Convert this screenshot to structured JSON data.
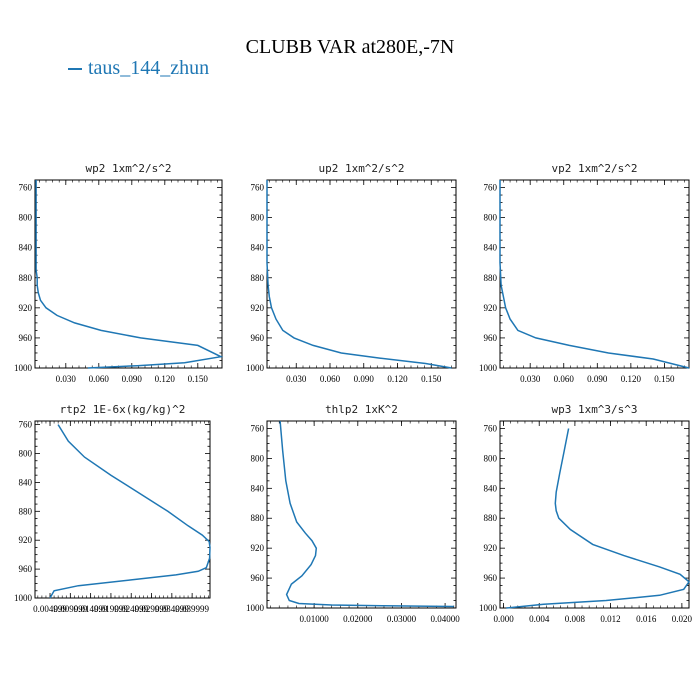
{
  "figure": {
    "title": "CLUBB VAR at280E,-7N",
    "legend": {
      "label": "taus_144_zhun",
      "color": "#1f77b4"
    }
  },
  "chart_data": [
    {
      "type": "line",
      "title": "wp2  1xm^2/s^2",
      "xticks": [
        0.03,
        0.06,
        0.09,
        0.12,
        0.15
      ],
      "xtick_labels": [
        "0.030",
        "0.060",
        "0.090",
        "0.120",
        "0.150"
      ],
      "xlim": [
        0.002,
        0.172
      ],
      "yticks": [
        760,
        800,
        840,
        880,
        920,
        960,
        1000
      ],
      "ylim": [
        1000,
        750
      ],
      "series": [
        {
          "x": [
            0.003,
            0.003,
            0.003,
            0.003,
            0.004,
            0.004,
            0.005,
            0.007,
            0.012,
            0.022,
            0.038,
            0.062,
            0.098,
            0.15,
            0.171,
            0.138,
            0.095,
            0.05
          ],
          "y": [
            750,
            800,
            840,
            870,
            880,
            890,
            900,
            910,
            920,
            930,
            940,
            950,
            960,
            970,
            985,
            993,
            997,
            1000
          ]
        }
      ]
    },
    {
      "type": "line",
      "title": "up2  1xm^2/s^2",
      "xticks": [
        0.03,
        0.06,
        0.09,
        0.12,
        0.15
      ],
      "xtick_labels": [
        "0.030",
        "0.060",
        "0.090",
        "0.120",
        "0.150"
      ],
      "xlim": [
        0.004,
        0.172
      ],
      "yticks": [
        760,
        800,
        840,
        880,
        920,
        960,
        1000
      ],
      "ylim": [
        1000,
        750
      ],
      "series": [
        {
          "x": [
            0.004,
            0.004,
            0.004,
            0.005,
            0.006,
            0.008,
            0.012,
            0.018,
            0.028,
            0.045,
            0.07,
            0.105,
            0.145,
            0.168
          ],
          "y": [
            750,
            800,
            860,
            890,
            905,
            920,
            935,
            950,
            960,
            970,
            980,
            987,
            994,
            1000
          ]
        }
      ]
    },
    {
      "type": "line",
      "title": "vp2  1xm^2/s^2",
      "xticks": [
        0.03,
        0.06,
        0.09,
        0.12,
        0.15
      ],
      "xtick_labels": [
        "0.030",
        "0.060",
        "0.090",
        "0.120",
        "0.150"
      ],
      "xlim": [
        0.003,
        0.172
      ],
      "yticks": [
        760,
        800,
        840,
        880,
        920,
        960,
        1000
      ],
      "ylim": [
        1000,
        750
      ],
      "series": [
        {
          "x": [
            0.003,
            0.003,
            0.003,
            0.004,
            0.006,
            0.008,
            0.012,
            0.019,
            0.035,
            0.065,
            0.1,
            0.14,
            0.172
          ],
          "y": [
            750,
            800,
            860,
            890,
            905,
            920,
            935,
            950,
            960,
            970,
            980,
            988,
            1000
          ]
        }
      ]
    },
    {
      "type": "line",
      "title": "rtp2  1E-6x(kg/kg)^2",
      "xticks": [
        0.00499999,
        0.00999999,
        0.01499999,
        0.01999999,
        0.02499999,
        0.02999999,
        0.03499999,
        0.03999999
      ],
      "xtick_labels": [
        "0.004999",
        "0.009999",
        "0.014999",
        "0.019999",
        "0.024999",
        "0.029999",
        "0.034999",
        "0.039999"
      ],
      "xlim": [
        0.0013,
        0.0444
      ],
      "yticks": [
        760,
        800,
        840,
        880,
        920,
        960,
        1000
      ],
      "ylim": [
        1000,
        755
      ],
      "series": [
        {
          "x": [
            0.007,
            0.0095,
            0.0135,
            0.02,
            0.027,
            0.034,
            0.039,
            0.0425,
            0.0442,
            0.0444,
            0.0443,
            0.0435,
            0.0415,
            0.036,
            0.025,
            0.012,
            0.006,
            0.005
          ],
          "y": [
            760,
            783,
            805,
            830,
            855,
            880,
            900,
            913,
            922,
            930,
            945,
            958,
            963,
            968,
            975,
            983,
            990,
            1000
          ]
        }
      ]
    },
    {
      "type": "line",
      "title": "thlp2  1xK^2",
      "xticks": [
        0.01,
        0.02,
        0.03,
        0.04
      ],
      "xtick_labels": [
        "0.01000",
        "0.02000",
        "0.03000",
        "0.04000"
      ],
      "xlim": [
        -0.0008,
        0.0425
      ],
      "yticks": [
        760,
        800,
        840,
        880,
        920,
        960,
        1000
      ],
      "ylim": [
        1000,
        750
      ],
      "series": [
        {
          "x": [
            0.0022,
            0.0028,
            0.0035,
            0.0045,
            0.006,
            0.008,
            0.0095,
            0.0105,
            0.0103,
            0.0093,
            0.0072,
            0.0048,
            0.0037,
            0.0043,
            0.0065,
            0.014,
            0.026,
            0.042
          ],
          "y": [
            750,
            790,
            830,
            860,
            885,
            900,
            910,
            920,
            930,
            942,
            957,
            968,
            982,
            990,
            994,
            996,
            997,
            998
          ]
        }
      ]
    },
    {
      "type": "line",
      "title": "wp3  1xm^3/s^3",
      "xticks": [
        0.0,
        0.004,
        0.008,
        0.012,
        0.016,
        0.02
      ],
      "xtick_labels": [
        "0.000",
        "0.004",
        "0.008",
        "0.012",
        "0.016",
        "0.020"
      ],
      "xlim": [
        -0.0004,
        0.0208
      ],
      "yticks": [
        760,
        800,
        840,
        880,
        920,
        960,
        1000
      ],
      "ylim": [
        1000,
        750
      ],
      "series": [
        {
          "x": [
            0.0073,
            0.0068,
            0.0063,
            0.0059,
            0.0058,
            0.0059,
            0.0062,
            0.0075,
            0.01,
            0.0135,
            0.0175,
            0.0198,
            0.0208,
            0.0202,
            0.0175,
            0.0115,
            0.0045,
            0.0003
          ],
          "y": [
            760,
            790,
            820,
            845,
            860,
            870,
            880,
            895,
            915,
            930,
            945,
            955,
            965,
            975,
            983,
            990,
            995,
            1000
          ]
        }
      ]
    }
  ]
}
